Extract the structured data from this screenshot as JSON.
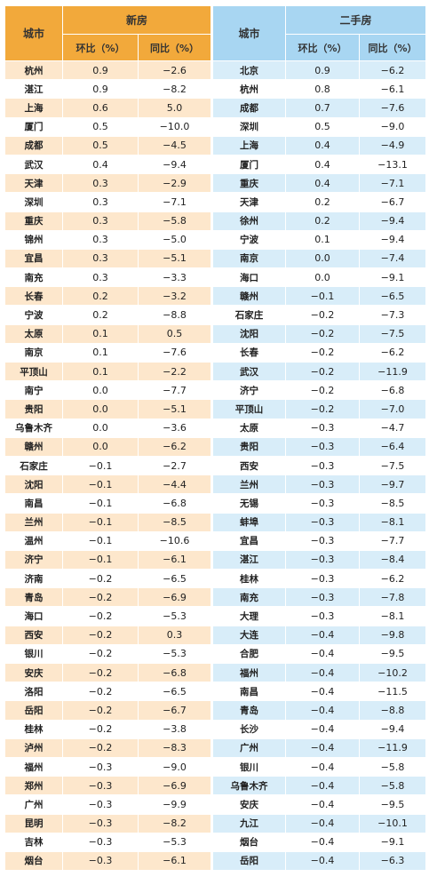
{
  "new_home": {
    "city_header": "城市",
    "group_header": "新房",
    "mom_header": "环比（%）",
    "yoy_header": "同比（%）",
    "rows": [
      [
        "杭州",
        "0.9",
        "−2.6"
      ],
      [
        "湛江",
        "0.9",
        "−8.2"
      ],
      [
        "上海",
        "0.6",
        "5.0"
      ],
      [
        "厦门",
        "0.5",
        "−10.0"
      ],
      [
        "成都",
        "0.5",
        "−4.5"
      ],
      [
        "武汉",
        "0.4",
        "−9.4"
      ],
      [
        "天津",
        "0.3",
        "−2.9"
      ],
      [
        "深圳",
        "0.3",
        "−7.1"
      ],
      [
        "重庆",
        "0.3",
        "−5.8"
      ],
      [
        "锦州",
        "0.3",
        "−5.0"
      ],
      [
        "宜昌",
        "0.3",
        "−5.1"
      ],
      [
        "南充",
        "0.3",
        "−3.3"
      ],
      [
        "长春",
        "0.2",
        "−3.2"
      ],
      [
        "宁波",
        "0.2",
        "−8.8"
      ],
      [
        "太原",
        "0.1",
        "0.5"
      ],
      [
        "南京",
        "0.1",
        "−7.6"
      ],
      [
        "平顶山",
        "0.1",
        "−2.2"
      ],
      [
        "南宁",
        "0.0",
        "−7.7"
      ],
      [
        "贵阳",
        "0.0",
        "−5.1"
      ],
      [
        "乌鲁木齐",
        "0.0",
        "−3.6"
      ],
      [
        "赣州",
        "0.0",
        "−6.2"
      ],
      [
        "石家庄",
        "−0.1",
        "−2.7"
      ],
      [
        "沈阳",
        "−0.1",
        "−4.4"
      ],
      [
        "南昌",
        "−0.1",
        "−6.8"
      ],
      [
        "兰州",
        "−0.1",
        "−8.5"
      ],
      [
        "温州",
        "−0.1",
        "−10.6"
      ],
      [
        "济宁",
        "−0.1",
        "−6.1"
      ],
      [
        "济南",
        "−0.2",
        "−6.5"
      ],
      [
        "青岛",
        "−0.2",
        "−6.9"
      ],
      [
        "海口",
        "−0.2",
        "−5.3"
      ],
      [
        "西安",
        "−0.2",
        "0.3"
      ],
      [
        "银川",
        "−0.2",
        "−5.3"
      ],
      [
        "安庆",
        "−0.2",
        "−6.8"
      ],
      [
        "洛阳",
        "−0.2",
        "−6.5"
      ],
      [
        "岳阳",
        "−0.2",
        "−6.7"
      ],
      [
        "桂林",
        "−0.2",
        "−3.8"
      ],
      [
        "泸州",
        "−0.2",
        "−8.3"
      ],
      [
        "福州",
        "−0.3",
        "−9.0"
      ],
      [
        "郑州",
        "−0.3",
        "−6.9"
      ],
      [
        "广州",
        "−0.3",
        "−9.9"
      ],
      [
        "昆明",
        "−0.3",
        "−8.2"
      ],
      [
        "吉林",
        "−0.3",
        "−5.3"
      ],
      [
        "烟台",
        "−0.3",
        "−6.1"
      ]
    ]
  },
  "second_hand": {
    "city_header": "城市",
    "group_header": "二手房",
    "mom_header": "环比（%）",
    "yoy_header": "同比（%）",
    "rows": [
      [
        "北京",
        "0.9",
        "−6.2"
      ],
      [
        "杭州",
        "0.8",
        "−6.1"
      ],
      [
        "成都",
        "0.7",
        "−7.6"
      ],
      [
        "深圳",
        "0.5",
        "−9.0"
      ],
      [
        "上海",
        "0.4",
        "−4.9"
      ],
      [
        "厦门",
        "0.4",
        "−13.1"
      ],
      [
        "重庆",
        "0.4",
        "−7.1"
      ],
      [
        "天津",
        "0.2",
        "−6.7"
      ],
      [
        "徐州",
        "0.2",
        "−9.4"
      ],
      [
        "宁波",
        "0.1",
        "−9.4"
      ],
      [
        "南京",
        "0.0",
        "−7.4"
      ],
      [
        "海口",
        "0.0",
        "−9.1"
      ],
      [
        "赣州",
        "−0.1",
        "−6.5"
      ],
      [
        "石家庄",
        "−0.2",
        "−7.3"
      ],
      [
        "沈阳",
        "−0.2",
        "−7.5"
      ],
      [
        "长春",
        "−0.2",
        "−6.2"
      ],
      [
        "武汉",
        "−0.2",
        "−11.9"
      ],
      [
        "济宁",
        "−0.2",
        "−6.8"
      ],
      [
        "平顶山",
        "−0.2",
        "−7.0"
      ],
      [
        "太原",
        "−0.3",
        "−4.7"
      ],
      [
        "贵阳",
        "−0.3",
        "−6.4"
      ],
      [
        "西安",
        "−0.3",
        "−7.5"
      ],
      [
        "兰州",
        "−0.3",
        "−9.7"
      ],
      [
        "无锡",
        "−0.3",
        "−8.5"
      ],
      [
        "蚌埠",
        "−0.3",
        "−8.1"
      ],
      [
        "宜昌",
        "−0.3",
        "−7.7"
      ],
      [
        "湛江",
        "−0.3",
        "−8.4"
      ],
      [
        "桂林",
        "−0.3",
        "−6.2"
      ],
      [
        "南充",
        "−0.3",
        "−7.8"
      ],
      [
        "大理",
        "−0.3",
        "−8.1"
      ],
      [
        "大连",
        "−0.4",
        "−9.8"
      ],
      [
        "合肥",
        "−0.4",
        "−9.5"
      ],
      [
        "福州",
        "−0.4",
        "−10.2"
      ],
      [
        "南昌",
        "−0.4",
        "−11.5"
      ],
      [
        "青岛",
        "−0.4",
        "−8.8"
      ],
      [
        "长沙",
        "−0.4",
        "−9.4"
      ],
      [
        "广州",
        "−0.4",
        "−11.9"
      ],
      [
        "银川",
        "−0.4",
        "−5.8"
      ],
      [
        "乌鲁木齐",
        "−0.4",
        "−5.8"
      ],
      [
        "安庆",
        "−0.4",
        "−9.5"
      ],
      [
        "九江",
        "−0.4",
        "−10.1"
      ],
      [
        "烟台",
        "−0.4",
        "−9.1"
      ],
      [
        "岳阳",
        "−0.4",
        "−6.3"
      ]
    ]
  }
}
